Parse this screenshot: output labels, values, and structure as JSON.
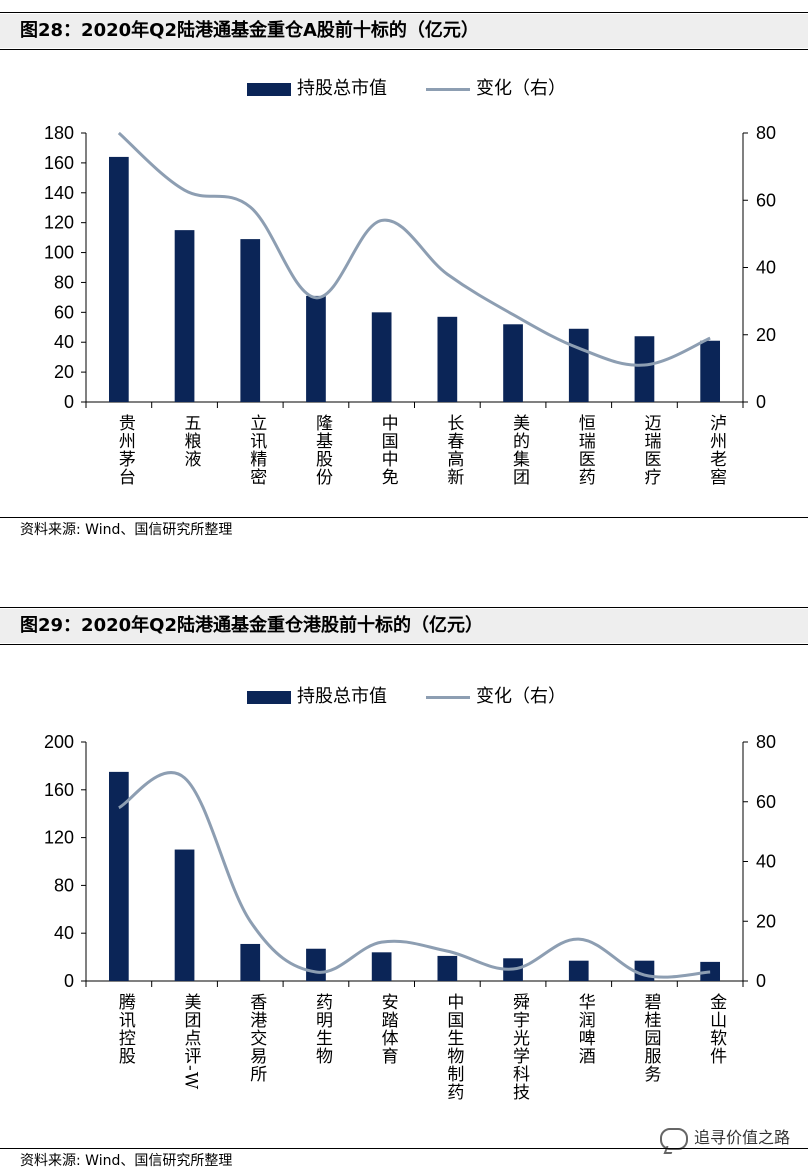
{
  "charts": [
    {
      "figure_title": "图28：2020年Q2陆港通基金重仓A股前十标的（亿元）",
      "source": "资料来源: Wind、国信研究所整理"
    },
    {
      "figure_title": "图29：2020年Q2陆港通基金重仓港股前十标的（亿元）",
      "source": "资料来源: Wind、国信研究所整理"
    }
  ],
  "watermark": "追寻价值之路",
  "colors": {
    "bar": "#0b2557",
    "line": "#8d9eb2",
    "title_bg": "#eeeeee"
  },
  "chart_data": [
    {
      "type": "bar+line",
      "title": "2020年Q2陆港通基金重仓A股前十标的（亿元）",
      "legend": [
        "持股总市值",
        "变化（右）"
      ],
      "legend_position": "top-center",
      "categories": [
        "贵州茅台",
        "五粮液",
        "立讯精密",
        "隆基股份",
        "中国中免",
        "长春高新",
        "美的集团",
        "恒瑞医药",
        "迈瑞医疗",
        "泸州老窖"
      ],
      "series": [
        {
          "name": "持股总市值",
          "type": "bar",
          "axis": "left",
          "values": [
            164,
            115,
            109,
            71,
            60,
            57,
            52,
            49,
            44,
            41
          ]
        },
        {
          "name": "变化（右）",
          "type": "line",
          "axis": "right",
          "values": [
            80,
            63,
            58,
            31,
            54,
            38,
            26,
            16,
            11,
            19
          ]
        }
      ],
      "ylim_left": [
        0,
        180
      ],
      "yticks_left": [
        0,
        20,
        40,
        60,
        80,
        100,
        120,
        140,
        160,
        180
      ],
      "ylim_right": [
        0,
        80
      ],
      "yticks_right": [
        0,
        20,
        40,
        60,
        80
      ],
      "grid": false
    },
    {
      "type": "bar+line",
      "title": "2020年Q2陆港通基金重仓港股前十标的（亿元）",
      "legend": [
        "持股总市值",
        "变化（右）"
      ],
      "legend_position": "top-center",
      "categories": [
        "腾讯控股",
        "美团点评-W",
        "香港交易所",
        "药明生物",
        "安踏体育",
        "中国生物制药",
        "舜宇光学科技",
        "华润啤酒",
        "碧桂园服务",
        "金山软件"
      ],
      "series": [
        {
          "name": "持股总市值",
          "type": "bar",
          "axis": "left",
          "values": [
            175,
            110,
            31,
            27,
            24,
            21,
            19,
            17,
            17,
            16
          ]
        },
        {
          "name": "变化（右）",
          "type": "line",
          "axis": "right",
          "values": [
            58,
            68,
            20,
            3,
            13,
            10,
            4,
            14,
            2,
            3
          ]
        }
      ],
      "ylim_left": [
        0,
        200
      ],
      "yticks_left": [
        0,
        40,
        80,
        120,
        160,
        200
      ],
      "ylim_right": [
        0,
        80
      ],
      "yticks_right": [
        0,
        20,
        40,
        60,
        80
      ],
      "grid": false
    }
  ]
}
